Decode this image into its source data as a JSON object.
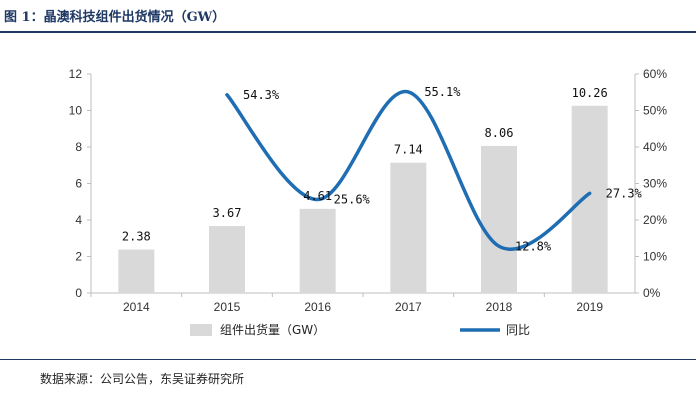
{
  "header": {
    "title": "图 1：晶澳科技组件出货情况（GW）"
  },
  "footer": {
    "source": "数据来源：公司公告，东吴证券研究所"
  },
  "colors": {
    "bar": "#d9d9d9",
    "line": "#1f6db3",
    "axis": "#bfbfbf",
    "title": "#1f3864"
  },
  "chart_data": {
    "type": "bar",
    "categories": [
      "2014",
      "2015",
      "2016",
      "2017",
      "2018",
      "2019"
    ],
    "series": [
      {
        "name": "组件出货量（GW）",
        "type": "bar",
        "axis": "left",
        "values": [
          2.38,
          3.67,
          4.61,
          7.14,
          8.06,
          10.26
        ],
        "labels": [
          "2.38",
          "3.67",
          "4.61",
          "7.14",
          "8.06",
          "10.26"
        ]
      },
      {
        "name": "同比",
        "type": "line",
        "axis": "right",
        "values": [
          null,
          54.3,
          25.6,
          55.1,
          12.8,
          27.3
        ],
        "labels": [
          "",
          "54.3%",
          "25.6%",
          "55.1%",
          "12.8%",
          "27.3%"
        ]
      }
    ],
    "y_left": {
      "min": 0,
      "max": 12,
      "ticks": [
        "0",
        "2",
        "4",
        "6",
        "8",
        "10",
        "12"
      ]
    },
    "y_right": {
      "min": 0,
      "max": 60,
      "ticks": [
        "0%",
        "10%",
        "20%",
        "30%",
        "40%",
        "50%",
        "60%"
      ]
    },
    "grid": false,
    "legend": "bottom"
  }
}
